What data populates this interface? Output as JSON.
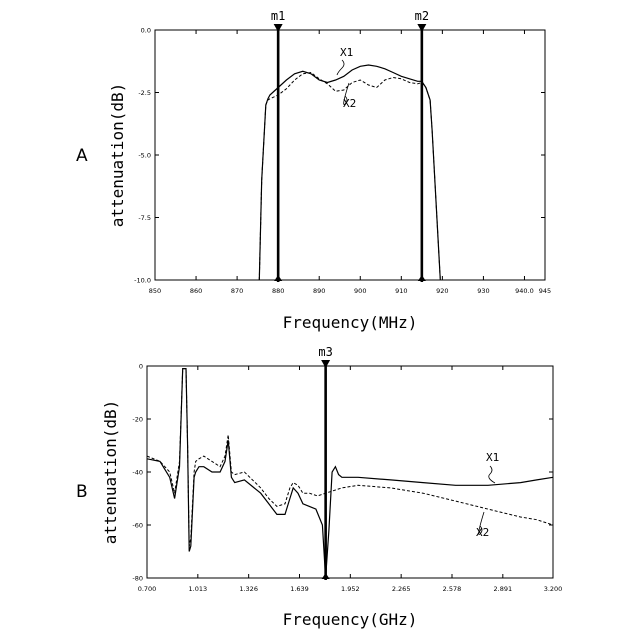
{
  "chart_data": [
    {
      "type": "line",
      "panel_label": "A",
      "xlabel": "Frequency(MHz)",
      "ylabel": "attenuation(dB)",
      "xlim": [
        850,
        945
      ],
      "ylim": [
        -10,
        0
      ],
      "x_ticks": [
        850,
        860,
        870,
        880,
        890,
        900,
        910,
        920,
        930,
        940,
        945
      ],
      "x_tick_labels": [
        "850",
        "860",
        "870",
        "880",
        "890",
        "900",
        "910",
        "920",
        "930",
        "940.0",
        "945"
      ],
      "y_ticks": [
        0,
        -2.5,
        -5,
        -7.5,
        -10
      ],
      "y_tick_labels": [
        "0.0",
        "-2.5",
        "-5.0",
        "-7.5",
        "-10.0"
      ],
      "grid": false,
      "markers": [
        {
          "label": "m1",
          "x": 880
        },
        {
          "label": "m2",
          "x": 915
        }
      ],
      "series": [
        {
          "name": "X1",
          "style": "solid",
          "x": [
            875.4,
            876,
            877,
            877.5,
            878,
            880,
            882,
            884,
            886,
            888,
            890,
            892,
            894,
            896,
            898,
            900,
            902,
            904,
            906,
            908,
            910,
            912,
            914,
            915,
            916,
            917,
            917.5,
            918.5,
            919.5
          ],
          "y": [
            -10,
            -6.0,
            -3.0,
            -2.75,
            -2.6,
            -2.3,
            -2.0,
            -1.75,
            -1.65,
            -1.75,
            -2.0,
            -2.1,
            -2.0,
            -1.85,
            -1.6,
            -1.45,
            -1.4,
            -1.45,
            -1.55,
            -1.7,
            -1.85,
            -1.95,
            -2.05,
            -2.05,
            -2.3,
            -2.8,
            -4.0,
            -7.0,
            -10
          ]
        },
        {
          "name": "X2",
          "style": "dashed",
          "x": [
            875.4,
            876,
            877,
            877.5,
            878,
            880,
            882,
            884,
            886,
            888,
            890,
            892,
            894,
            896,
            898,
            900,
            902,
            904,
            906,
            908,
            910,
            912,
            914,
            915,
            916,
            917,
            917.5,
            918.5,
            919.5
          ],
          "y": [
            -10,
            -6.0,
            -3.0,
            -2.8,
            -2.75,
            -2.6,
            -2.35,
            -2.0,
            -1.75,
            -1.7,
            -1.95,
            -2.15,
            -2.45,
            -2.4,
            -2.1,
            -2.0,
            -2.2,
            -2.3,
            -2.0,
            -1.9,
            -1.95,
            -2.1,
            -2.15,
            -2.1,
            -2.3,
            -2.8,
            -4.0,
            -7.0,
            -10
          ]
        }
      ]
    },
    {
      "type": "line",
      "panel_label": "B",
      "xlabel": "Frequency(GHz)",
      "ylabel": "attenuation(dB)",
      "xlim": [
        0.7,
        3.2
      ],
      "ylim": [
        -80,
        0
      ],
      "x_ticks": [
        0.7,
        1.013,
        1.326,
        1.639,
        1.952,
        2.265,
        2.578,
        2.891,
        3.2
      ],
      "x_tick_labels": [
        "0.700",
        "1.013",
        "1.326",
        "1.639",
        "1.952",
        "2.265",
        "2.578",
        "2.891",
        "3.200"
      ],
      "y_ticks": [
        0,
        -20,
        -40,
        -60,
        -80
      ],
      "y_tick_labels": [
        "0",
        "-20",
        "-40",
        "-60",
        "-80"
      ],
      "grid": false,
      "markers": [
        {
          "label": "m3",
          "x": 1.8
        }
      ],
      "series": [
        {
          "name": "X1",
          "style": "solid",
          "x": [
            0.7,
            0.78,
            0.84,
            0.87,
            0.9,
            0.92,
            0.94,
            0.95,
            0.96,
            0.97,
            0.99,
            1.0,
            1.02,
            1.05,
            1.1,
            1.15,
            1.18,
            1.2,
            1.22,
            1.24,
            1.3,
            1.4,
            1.45,
            1.5,
            1.55,
            1.58,
            1.6,
            1.63,
            1.66,
            1.7,
            1.74,
            1.78,
            1.8,
            1.82,
            1.84,
            1.86,
            1.88,
            1.9,
            2.0,
            2.2,
            2.4,
            2.6,
            2.8,
            3.0,
            3.1,
            3.2
          ],
          "y": [
            -35,
            -36,
            -42,
            -50,
            -38,
            -1,
            -1,
            -30,
            -70,
            -68,
            -42,
            -40,
            -38,
            -38,
            -40,
            -40,
            -36,
            -28,
            -42,
            -44,
            -43,
            -48,
            -52,
            -56,
            -56,
            -50,
            -46,
            -48,
            -52,
            -53,
            -54,
            -60,
            -80,
            -62,
            -40,
            -38,
            -41,
            -42,
            -42,
            -43,
            -44,
            -45,
            -45,
            -44,
            -43,
            -42
          ]
        },
        {
          "name": "X2",
          "style": "dashed",
          "x": [
            0.7,
            0.78,
            0.84,
            0.87,
            0.9,
            0.92,
            0.94,
            0.95,
            0.96,
            0.97,
            0.99,
            1.0,
            1.02,
            1.05,
            1.1,
            1.15,
            1.18,
            1.2,
            1.22,
            1.24,
            1.3,
            1.4,
            1.45,
            1.5,
            1.55,
            1.58,
            1.6,
            1.63,
            1.66,
            1.7,
            1.75,
            1.8,
            1.9,
            2.0,
            2.2,
            2.4,
            2.6,
            2.8,
            3.0,
            3.1,
            3.2
          ],
          "y": [
            -34,
            -36,
            -40,
            -48,
            -36,
            -1,
            -1,
            -30,
            -68,
            -65,
            -40,
            -36,
            -35,
            -34,
            -36,
            -38,
            -34,
            -26,
            -40,
            -41,
            -40,
            -46,
            -50,
            -53,
            -52,
            -46,
            -44,
            -45,
            -48,
            -48,
            -49,
            -48,
            -46,
            -45,
            -46,
            -48,
            -51,
            -54,
            -57,
            -58,
            -60
          ]
        }
      ]
    }
  ]
}
